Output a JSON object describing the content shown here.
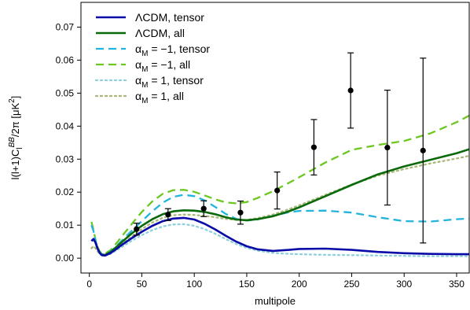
{
  "chart_data": {
    "type": "line",
    "title": "",
    "xlabel": "multipole",
    "ylabel": "l(l+1)C_l^{BB}/2π [μK²]",
    "xlim": [
      -8,
      362
    ],
    "ylim": [
      -0.0045,
      0.0775
    ],
    "xticks": [
      0,
      50,
      100,
      150,
      200,
      250,
      300,
      350
    ],
    "yticks": [
      0.0,
      0.01,
      0.02,
      0.03,
      0.04,
      0.05,
      0.06,
      0.07
    ],
    "ytick_labels": [
      "0.00",
      "0.01",
      "0.02",
      "0.03",
      "0.04",
      "0.05",
      "0.06",
      "0.07"
    ],
    "grid": false,
    "legend_position": "top-left",
    "series": [
      {
        "name": "ΛCDM,   tensor",
        "color": "#0a0aa8",
        "style": "solid",
        "x": [
          2,
          4,
          6,
          8,
          10,
          12,
          15,
          20,
          25,
          30,
          40,
          50,
          60,
          70,
          80,
          90,
          100,
          110,
          120,
          130,
          140,
          150,
          160,
          175,
          190,
          200,
          225,
          250,
          275,
          300,
          325,
          350,
          362
        ],
        "y": [
          0.0052,
          0.0058,
          0.0046,
          0.0028,
          0.0015,
          0.0009,
          0.0008,
          0.0015,
          0.0026,
          0.0038,
          0.006,
          0.008,
          0.0098,
          0.0112,
          0.012,
          0.0122,
          0.0117,
          0.0104,
          0.0087,
          0.0068,
          0.005,
          0.0036,
          0.0027,
          0.0022,
          0.0025,
          0.0028,
          0.0029,
          0.0025,
          0.0019,
          0.0015,
          0.0013,
          0.0012,
          0.0012
        ]
      },
      {
        "name": "ΛCDM,   all",
        "color": "#0a6a0a",
        "style": "solid",
        "x": [
          2,
          4,
          6,
          8,
          10,
          12,
          15,
          20,
          25,
          30,
          40,
          50,
          60,
          70,
          80,
          90,
          100,
          110,
          120,
          130,
          140,
          150,
          160,
          175,
          190,
          200,
          225,
          250,
          275,
          300,
          325,
          350,
          362
        ],
        "y": [
          0.0052,
          0.0058,
          0.0046,
          0.0028,
          0.0016,
          0.001,
          0.001,
          0.0018,
          0.0032,
          0.0046,
          0.0074,
          0.0098,
          0.0118,
          0.0133,
          0.0142,
          0.0145,
          0.0144,
          0.014,
          0.0133,
          0.0124,
          0.0117,
          0.0115,
          0.0118,
          0.0127,
          0.0142,
          0.0154,
          0.0188,
          0.0222,
          0.0254,
          0.0278,
          0.0298,
          0.0318,
          0.033
        ]
      },
      {
        "name": "α_M = −1,  tensor",
        "color": "#22b4dc",
        "style": "dashed",
        "x": [
          2,
          4,
          6,
          8,
          10,
          12,
          15,
          20,
          25,
          30,
          40,
          50,
          60,
          70,
          80,
          90,
          100,
          110,
          120,
          130,
          140,
          150,
          160,
          175,
          190,
          200,
          225,
          250,
          275,
          300,
          325,
          350,
          362
        ],
        "y": [
          0.01,
          0.0082,
          0.0052,
          0.003,
          0.0018,
          0.0012,
          0.0012,
          0.002,
          0.0034,
          0.005,
          0.0082,
          0.0112,
          0.0142,
          0.0168,
          0.0186,
          0.0192,
          0.0188,
          0.0175,
          0.0155,
          0.0134,
          0.0119,
          0.0114,
          0.0117,
          0.0128,
          0.0139,
          0.0143,
          0.0144,
          0.0138,
          0.0124,
          0.0112,
          0.0111,
          0.0118,
          0.012
        ]
      },
      {
        "name": "α_M = −1,  all",
        "color": "#6ac820",
        "style": "dashed",
        "x": [
          2,
          4,
          6,
          8,
          10,
          12,
          15,
          20,
          25,
          30,
          40,
          50,
          60,
          70,
          80,
          90,
          100,
          110,
          120,
          130,
          140,
          150,
          160,
          175,
          190,
          200,
          225,
          250,
          275,
          300,
          325,
          350,
          362
        ],
        "y": [
          0.011,
          0.0085,
          0.0054,
          0.0032,
          0.002,
          0.0014,
          0.0014,
          0.0024,
          0.0042,
          0.0062,
          0.0102,
          0.014,
          0.0172,
          0.0195,
          0.0206,
          0.0207,
          0.0201,
          0.019,
          0.0178,
          0.0169,
          0.0166,
          0.017,
          0.0182,
          0.0203,
          0.0228,
          0.0245,
          0.029,
          0.0328,
          0.0343,
          0.0355,
          0.0378,
          0.0412,
          0.0432
        ]
      },
      {
        "name": "α_M = 1,   tensor",
        "color": "#8ed0dc",
        "style": "dotted",
        "x": [
          2,
          4,
          6,
          8,
          10,
          12,
          15,
          20,
          25,
          30,
          40,
          50,
          60,
          70,
          80,
          90,
          100,
          110,
          120,
          130,
          140,
          150,
          160,
          175,
          190,
          200,
          225,
          250,
          275,
          300,
          325,
          350,
          362
        ],
        "y": [
          0.003,
          0.0036,
          0.003,
          0.002,
          0.0012,
          0.0008,
          0.0008,
          0.0013,
          0.0022,
          0.0032,
          0.0052,
          0.007,
          0.0085,
          0.0096,
          0.0102,
          0.0103,
          0.0098,
          0.0088,
          0.0074,
          0.0058,
          0.0043,
          0.0031,
          0.0023,
          0.0016,
          0.0013,
          0.0012,
          0.001,
          0.0009,
          0.0008,
          0.0007,
          0.0006,
          0.0006,
          0.0006
        ]
      },
      {
        "name": "α_M = 1,   all",
        "color": "#a8b878",
        "style": "dotted",
        "x": [
          2,
          4,
          6,
          8,
          10,
          12,
          15,
          20,
          25,
          30,
          40,
          50,
          60,
          70,
          80,
          90,
          100,
          110,
          120,
          130,
          140,
          150,
          160,
          175,
          190,
          200,
          225,
          250,
          275,
          300,
          325,
          350,
          362
        ],
        "y": [
          0.003,
          0.0036,
          0.003,
          0.002,
          0.0013,
          0.0009,
          0.001,
          0.0016,
          0.0027,
          0.004,
          0.0064,
          0.0088,
          0.0108,
          0.0122,
          0.013,
          0.0132,
          0.0131,
          0.0128,
          0.0124,
          0.0119,
          0.0116,
          0.0116,
          0.0121,
          0.0132,
          0.0148,
          0.016,
          0.0192,
          0.0223,
          0.025,
          0.027,
          0.0287,
          0.0302,
          0.031
        ]
      }
    ],
    "points": {
      "color": "#000000",
      "x": [
        45,
        75,
        109,
        144,
        179,
        214,
        249,
        284,
        318
      ],
      "y": [
        0.0088,
        0.0132,
        0.015,
        0.0138,
        0.0205,
        0.0336,
        0.0508,
        0.0335,
        0.0326
      ],
      "err": [
        0.0018,
        0.0018,
        0.0024,
        0.0035,
        0.0056,
        0.0084,
        0.0114,
        0.0174,
        0.028
      ]
    }
  }
}
